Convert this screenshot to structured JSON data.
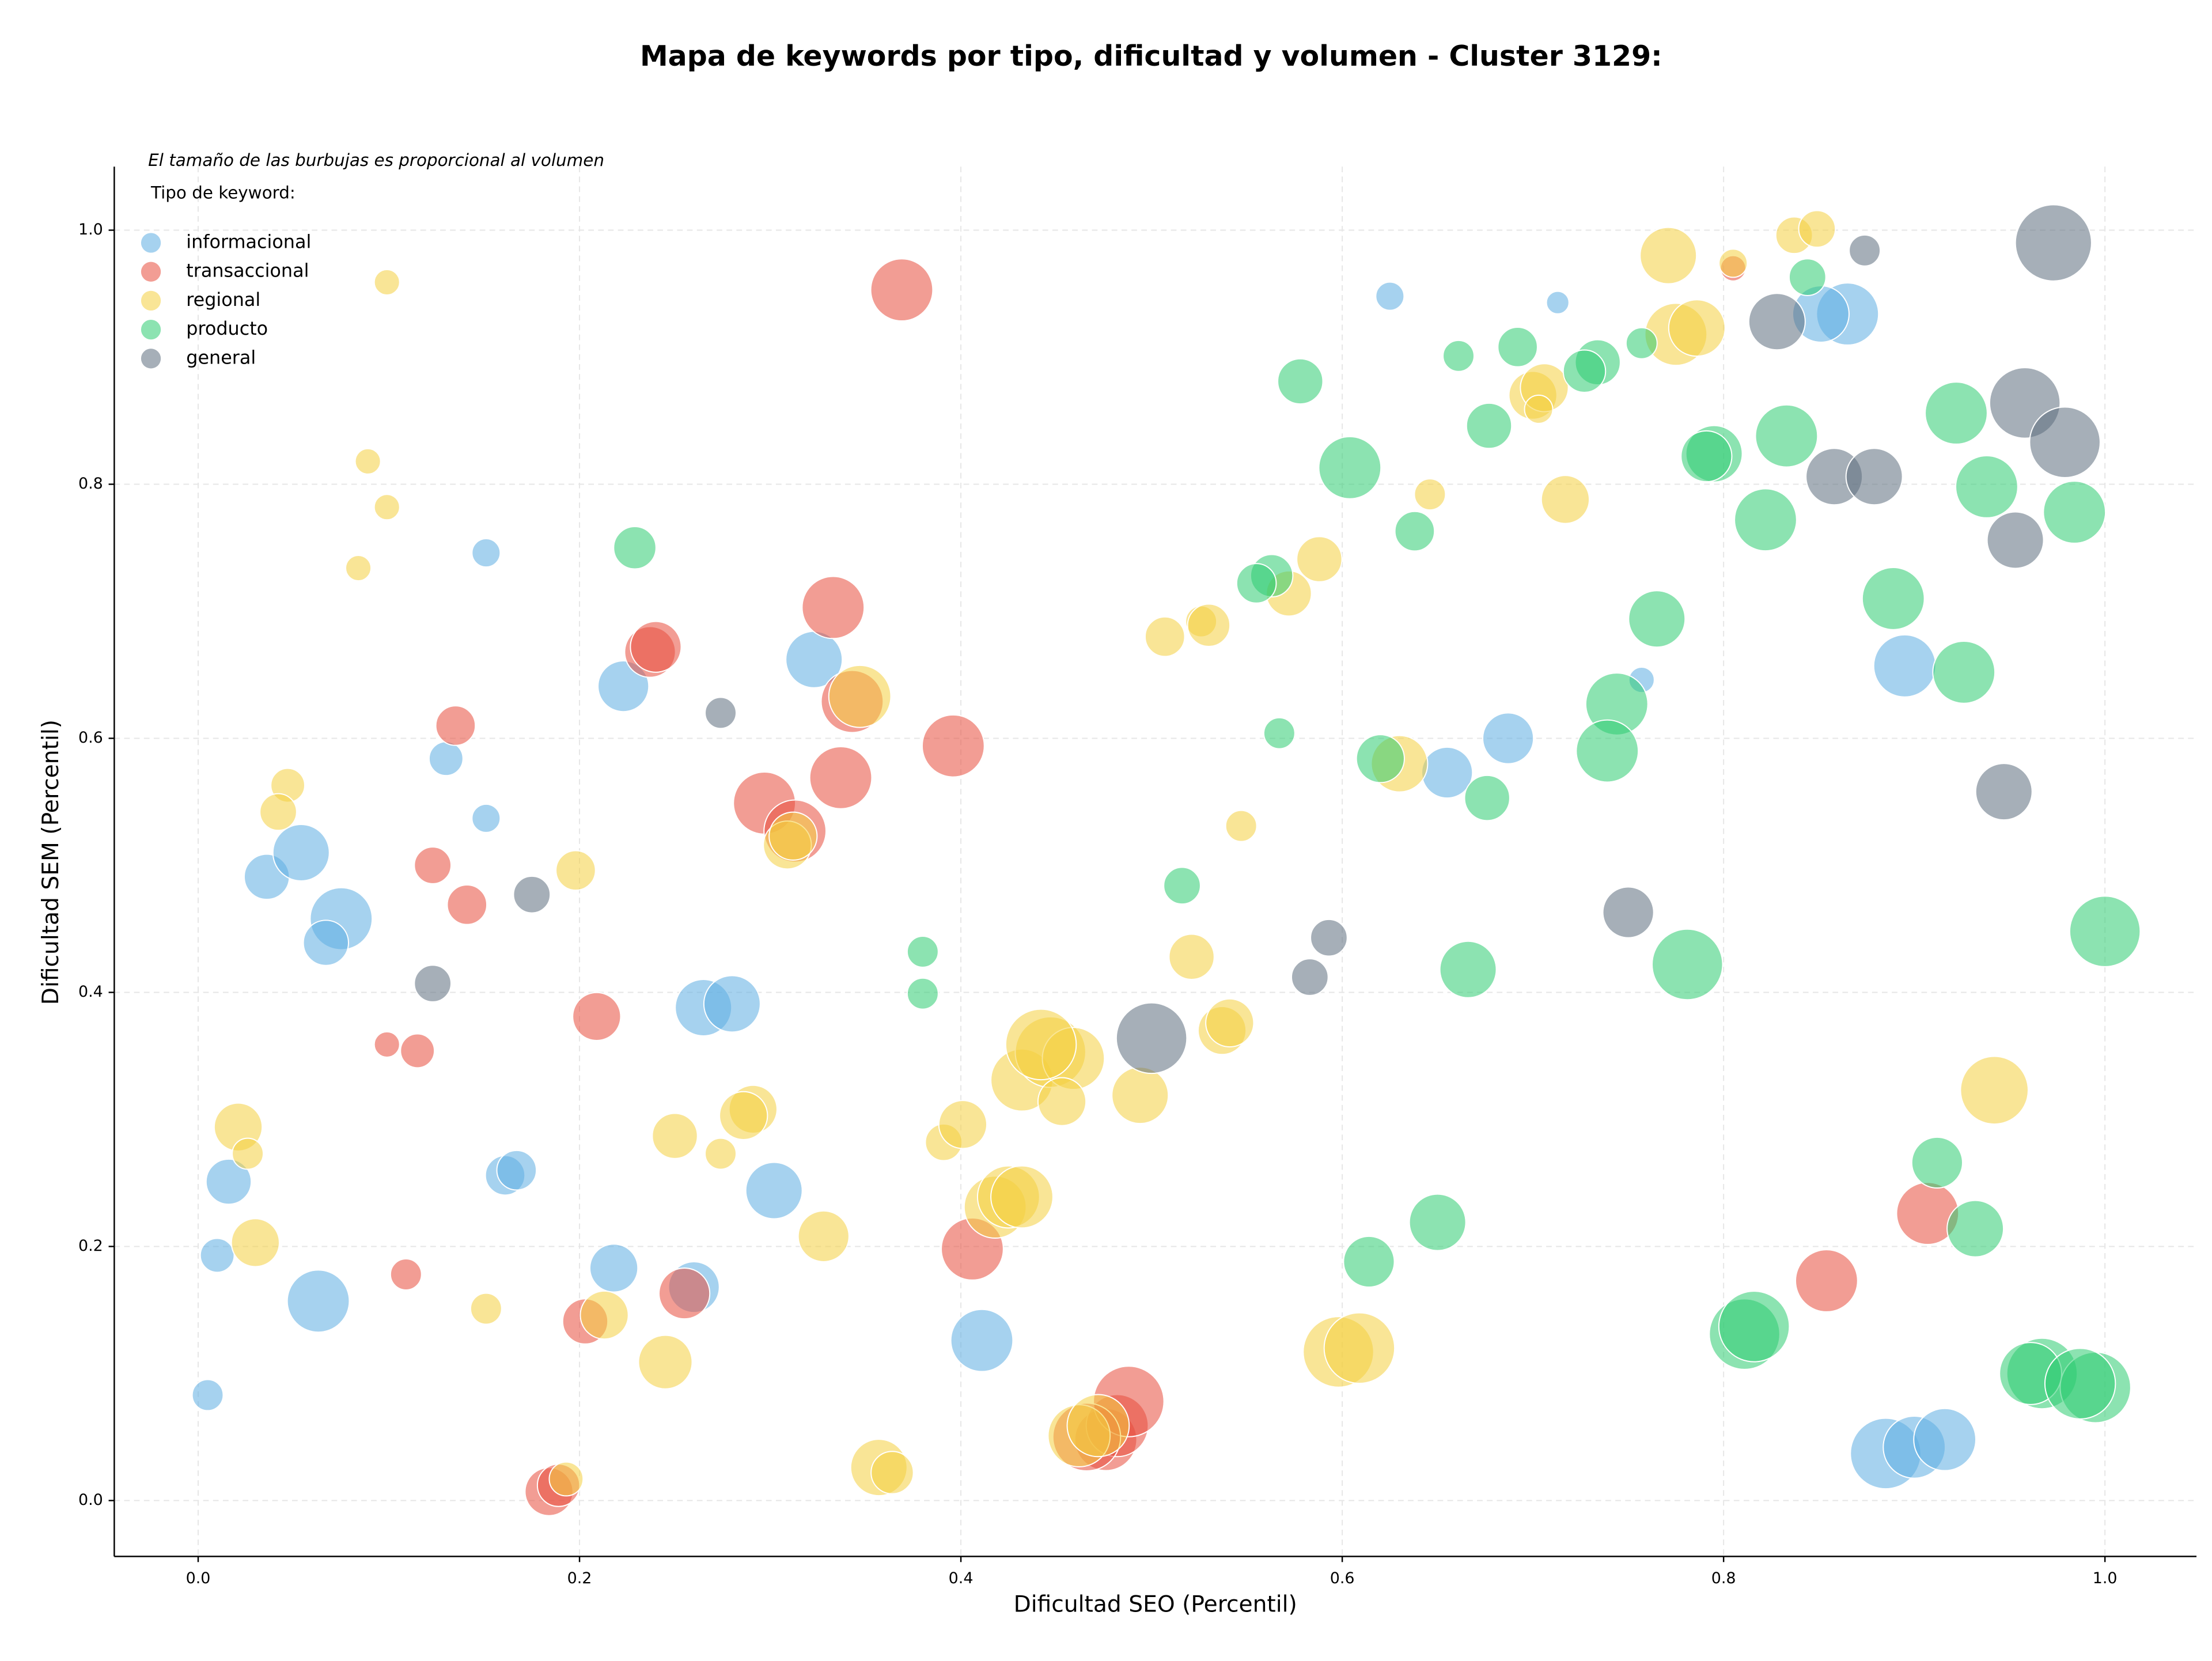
{
  "chart_data": {
    "type": "scatter",
    "title": "Mapa de keywords por tipo, dificultad y volumen - Cluster 3129:",
    "annotation": "El tamaño de las burbujas es proporcional al volumen",
    "legend_title": "Tipo de keyword:",
    "x_label": "Dificultad SEO (Percentil)",
    "y_label": "Dificultad SEM (Percentil)",
    "xlim": [
      -0.044,
      1.048
    ],
    "ylim": [
      -0.044,
      1.05
    ],
    "xticks": [
      {
        "value": 0,
        "label": "0.0"
      },
      0.2,
      0.4,
      0.6,
      0.8,
      {
        "value": 1,
        "label": "1.0"
      }
    ],
    "yticks": [
      {
        "value": 0,
        "label": "0.0"
      },
      0.2,
      0.4,
      0.6,
      0.8,
      {
        "value": 1,
        "label": "1.0"
      }
    ],
    "grid": true,
    "legend": "upper left",
    "series": [
      {
        "name": "informacional",
        "color": "#5dade2",
        "x": [
          0.625,
          0.713,
          0.865,
          0.851,
          0.895,
          0.757,
          0.655,
          0.687,
          0.323,
          0.223,
          0.151,
          0.13,
          0.151,
          0.036,
          0.054,
          0.075,
          0.067,
          0.265,
          0.28,
          0.302,
          0.016,
          0.01,
          0.005,
          0.063,
          0.161,
          0.167,
          0.218,
          0.26,
          0.411,
          0.885,
          0.9,
          0.916
        ],
        "y": [
          0.948,
          0.943,
          0.934,
          0.934,
          0.657,
          0.646,
          0.573,
          0.6,
          0.662,
          0.641,
          0.746,
          0.584,
          0.537,
          0.491,
          0.51,
          0.458,
          0.439,
          0.388,
          0.391,
          0.244,
          0.251,
          0.193,
          0.083,
          0.157,
          0.256,
          0.26,
          0.183,
          0.168,
          0.126,
          0.037,
          0.042,
          0.048
        ],
        "sizes": [
          100,
          64,
          484,
          400,
          484,
          81,
          324,
          324,
          400,
          324,
          100,
          144,
          100,
          256,
          400,
          484,
          256,
          400,
          400,
          400,
          256,
          144,
          121,
          484,
          196,
          196,
          289,
          324,
          484,
          625,
          484,
          484
        ]
      },
      {
        "name": "transaccional",
        "color": "#e74c3c",
        "x": [
          0.369,
          0.805,
          0.333,
          0.237,
          0.24,
          0.135,
          0.337,
          0.343,
          0.396,
          0.297,
          0.313,
          0.123,
          0.141,
          0.209,
          0.099,
          0.115,
          0.406,
          0.109,
          0.203,
          0.255,
          0.184,
          0.189,
          0.907,
          0.854,
          0.476,
          0.482,
          0.488,
          0.466
        ],
        "y": [
          0.953,
          0.97,
          0.703,
          0.668,
          0.672,
          0.61,
          0.569,
          0.629,
          0.594,
          0.549,
          0.527,
          0.5,
          0.469,
          0.381,
          0.359,
          0.354,
          0.198,
          0.178,
          0.141,
          0.163,
          0.007,
          0.012,
          0.226,
          0.173,
          0.048,
          0.059,
          0.078,
          0.05
        ],
        "sizes": [
          484,
          81,
          484,
          324,
          324,
          196,
          484,
          484,
          484,
          484,
          484,
          169,
          196,
          289,
          81,
          144,
          484,
          121,
          256,
          324,
          289,
          225,
          484,
          484,
          484,
          484,
          625,
          576
        ]
      },
      {
        "name": "regional",
        "color": "#f4d03f",
        "x": [
          0.099,
          0.089,
          0.099,
          0.084,
          0.047,
          0.042,
          0.198,
          0.021,
          0.026,
          0.03,
          0.151,
          0.213,
          0.245,
          0.193,
          0.25,
          0.274,
          0.291,
          0.286,
          0.328,
          0.309,
          0.312,
          0.347,
          0.357,
          0.364,
          0.391,
          0.401,
          0.432,
          0.447,
          0.459,
          0.453,
          0.442,
          0.418,
          0.425,
          0.432,
          0.494,
          0.462,
          0.472,
          0.507,
          0.526,
          0.53,
          0.521,
          0.537,
          0.541,
          0.547,
          0.572,
          0.588,
          0.63,
          0.598,
          0.609,
          0.646,
          0.717,
          0.7,
          0.706,
          0.703,
          0.771,
          0.775,
          0.786,
          0.805,
          0.837,
          0.849,
          0.942
        ],
        "y": [
          0.959,
          0.818,
          0.782,
          0.734,
          0.563,
          0.542,
          0.496,
          0.294,
          0.273,
          0.203,
          0.151,
          0.146,
          0.109,
          0.017,
          0.287,
          0.273,
          0.308,
          0.303,
          0.208,
          0.516,
          0.523,
          0.633,
          0.026,
          0.022,
          0.282,
          0.296,
          0.331,
          0.353,
          0.348,
          0.314,
          0.359,
          0.231,
          0.239,
          0.239,
          0.319,
          0.051,
          0.059,
          0.68,
          0.692,
          0.689,
          0.428,
          0.37,
          0.376,
          0.531,
          0.714,
          0.741,
          0.58,
          0.117,
          0.12,
          0.792,
          0.788,
          0.87,
          0.876,
          0.859,
          0.98,
          0.918,
          0.923,
          0.974,
          0.996,
          1.001,
          0.323
        ],
        "sizes": [
          81,
          81,
          81,
          81,
          144,
          169,
          196,
          289,
          121,
          289,
          121,
          289,
          361,
          144,
          256,
          121,
          289,
          289,
          324,
          289,
          289,
          484,
          400,
          225,
          169,
          289,
          484,
          625,
          484,
          289,
          625,
          484,
          484,
          484,
          400,
          484,
          484,
          196,
          121,
          225,
          256,
          289,
          289,
          121,
          256,
          256,
          400,
          625,
          625,
          121,
          289,
          289,
          289,
          100,
          400,
          484,
          400,
          100,
          169,
          169,
          576
        ]
      },
      {
        "name": "producto",
        "color": "#2ecc71",
        "x": [
          0.578,
          0.604,
          0.661,
          0.692,
          0.677,
          0.734,
          0.727,
          0.757,
          0.844,
          0.638,
          0.795,
          0.791,
          0.833,
          0.922,
          0.822,
          0.938,
          0.984,
          0.229,
          0.563,
          0.555,
          0.765,
          0.889,
          0.926,
          0.567,
          0.62,
          0.744,
          0.739,
          0.676,
          0.516,
          0.38,
          0.38,
          0.666,
          0.781,
          1.0,
          0.912,
          0.932,
          0.65,
          0.614,
          0.811,
          0.816,
          0.967,
          0.961,
          0.995,
          0.987
        ],
        "y": [
          0.881,
          0.813,
          0.901,
          0.908,
          0.846,
          0.896,
          0.889,
          0.911,
          0.963,
          0.763,
          0.824,
          0.822,
          0.838,
          0.856,
          0.772,
          0.798,
          0.778,
          0.75,
          0.728,
          0.722,
          0.694,
          0.71,
          0.652,
          0.604,
          0.584,
          0.627,
          0.59,
          0.553,
          0.484,
          0.432,
          0.399,
          0.418,
          0.422,
          0.448,
          0.266,
          0.214,
          0.219,
          0.188,
          0.131,
          0.137,
          0.1,
          0.1,
          0.089,
          0.092
        ],
        "sizes": [
          256,
          484,
          121,
          196,
          256,
          256,
          225,
          121,
          169,
          196,
          400,
          324,
          484,
          484,
          484,
          484,
          484,
          225,
          225,
          196,
          400,
          484,
          484,
          121,
          289,
          484,
          484,
          256,
          169,
          121,
          121,
          400,
          625,
          625,
          324,
          400,
          400,
          324,
          625,
          625,
          625,
          484,
          625,
          625
        ]
      },
      {
        "name": "general",
        "color": "#5d6d7e",
        "x": [
          0.874,
          0.973,
          0.828,
          0.958,
          0.979,
          0.858,
          0.879,
          0.953,
          0.947,
          0.75,
          0.593,
          0.583,
          0.5,
          0.274,
          0.175,
          0.123
        ],
        "y": [
          0.984,
          0.99,
          0.928,
          0.864,
          0.833,
          0.806,
          0.806,
          0.756,
          0.558,
          0.463,
          0.443,
          0.412,
          0.364,
          0.62,
          0.477,
          0.407
        ],
        "sizes": [
          121,
          729,
          400,
          625,
          625,
          400,
          400,
          400,
          400,
          324,
          169,
          169,
          625,
          121,
          169,
          169
        ]
      }
    ]
  }
}
